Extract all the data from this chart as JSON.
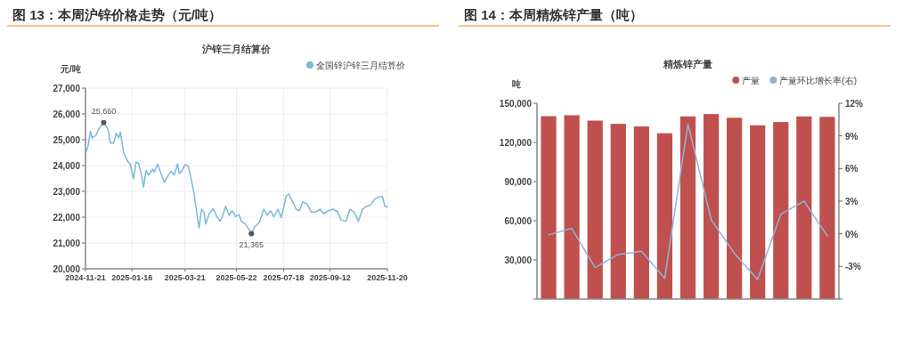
{
  "chart_data": [
    {
      "type": "line",
      "title": "图 13：本周沪锌价格走势（元/吨）",
      "subtitle": "沪锌三月结算价",
      "ylabel": "元/吨",
      "series": [
        {
          "name": "全国锌沪锌三月结算价",
          "color": "#7ab8d9",
          "x": [
            "2024-11-21",
            "2024-11-24",
            "2024-11-27",
            "2024-11-29",
            "2024-12-04",
            "2024-12-07",
            "2024-12-13",
            "2024-12-18",
            "2024-12-21",
            "2024-12-25",
            "2024-12-28",
            "2024-12-31",
            "2025-01-02",
            "2025-01-06",
            "2025-01-11",
            "2025-01-14",
            "2025-01-18",
            "2025-01-21",
            "2025-01-24",
            "2025-01-27",
            "2025-01-30",
            "2025-02-02",
            "2025-02-05",
            "2025-02-10",
            "2025-02-12",
            "2025-02-16",
            "2025-02-20",
            "2025-02-24",
            "2025-02-27",
            "2025-03-04",
            "2025-03-08",
            "2025-03-12",
            "2025-03-14",
            "2025-03-17",
            "2025-03-21",
            "2025-03-25",
            "2025-03-29",
            "2025-04-01",
            "2025-04-04",
            "2025-04-07",
            "2025-04-10",
            "2025-04-13",
            "2025-04-15",
            "2025-04-19",
            "2025-04-24",
            "2025-04-28",
            "2025-05-02",
            "2025-05-05",
            "2025-05-09",
            "2025-05-13",
            "2025-05-17",
            "2025-05-21",
            "2025-05-25",
            "2025-05-28",
            "2025-06-02",
            "2025-06-09",
            "2025-06-13",
            "2025-06-19",
            "2025-06-24",
            "2025-06-28",
            "2025-07-02",
            "2025-07-06",
            "2025-07-11",
            "2025-07-15",
            "2025-07-21",
            "2025-07-24",
            "2025-07-28",
            "2025-08-02",
            "2025-08-06",
            "2025-08-10",
            "2025-08-15",
            "2025-08-20",
            "2025-08-25",
            "2025-08-31",
            "2025-09-04",
            "2025-09-10",
            "2025-09-15",
            "2025-09-21",
            "2025-09-25",
            "2025-10-01",
            "2025-10-06",
            "2025-10-11",
            "2025-10-16",
            "2025-10-21",
            "2025-10-26",
            "2025-10-31",
            "2025-11-05",
            "2025-11-10",
            "2025-11-14",
            "2025-11-17",
            "2025-11-20"
          ],
          "values": [
            24500,
            24730,
            25330,
            25070,
            25190,
            25420,
            25660,
            25420,
            24870,
            24870,
            25250,
            25070,
            25300,
            24500,
            24150,
            24060,
            23490,
            24130,
            24090,
            23710,
            23170,
            23810,
            23630,
            23860,
            23750,
            24060,
            23690,
            23340,
            23520,
            23780,
            23630,
            24060,
            23690,
            23780,
            24040,
            23980,
            23400,
            22880,
            22190,
            21590,
            22310,
            22190,
            21730,
            22130,
            22330,
            22050,
            21840,
            22020,
            22420,
            22080,
            22250,
            22020,
            22100,
            21840,
            21730,
            21365,
            21620,
            21820,
            22310,
            22080,
            22250,
            22020,
            22310,
            21980,
            22820,
            22900,
            22650,
            22310,
            22250,
            22600,
            22510,
            22210,
            22190,
            22310,
            22130,
            22250,
            22310,
            22210,
            21900,
            21840,
            22310,
            22190,
            21840,
            22310,
            22420,
            22480,
            22710,
            22790,
            22790,
            22420,
            22400
          ]
        }
      ],
      "xlim": [
        "2024-11-21",
        "2025-11-20"
      ],
      "xticks": [
        "2024-11-21",
        "2025-01-16",
        "2025-03-21",
        "2025-05-22",
        "2025-07-18",
        "2025-09-12",
        "2025-11-20"
      ],
      "ylim": [
        20000,
        27000
      ],
      "yticks": [
        {
          "value": 20000,
          "label": "20,000"
        },
        {
          "value": 21000,
          "label": "21,000"
        },
        {
          "value": 22000,
          "label": "22,000"
        },
        {
          "value": 23000,
          "label": "23,000"
        },
        {
          "value": 24000,
          "label": "24,000"
        },
        {
          "value": 25000,
          "label": "25,000"
        },
        {
          "value": 26000,
          "label": "26,000"
        },
        {
          "value": 27000,
          "label": "27,000"
        }
      ],
      "annotations": [
        {
          "text": "25,660",
          "x": "2024-12-13",
          "y": 25660
        },
        {
          "text": "21,365",
          "x": "2025-06-09",
          "y": 21365
        }
      ],
      "grid": true,
      "legend": "top right"
    },
    {
      "type": "bar",
      "title": "图 14：本周精炼锌产量（吨）",
      "subtitle": "精炼锌产量",
      "ylabel": "吨",
      "categories": [
        null,
        null,
        null,
        null,
        null,
        null,
        null,
        null,
        null,
        null,
        null,
        null,
        null
      ],
      "series": [
        {
          "name": "产量",
          "color": "#c0504d",
          "values": [
            140100,
            140800,
            136700,
            134200,
            132200,
            127000,
            139900,
            141700,
            138900,
            133100,
            135600,
            139900,
            139600
          ]
        },
        {
          "name": "产量环比增长率(右)",
          "type": "line",
          "axis": "y2",
          "color": "#8fb4dc",
          "values": [
            -0.1,
            0.5,
            -3.1,
            -1.9,
            -1.6,
            -4.1,
            10.1,
            1.3,
            -1.8,
            -4.2,
            1.8,
            3.0,
            -0.2
          ]
        }
      ],
      "ylim": [
        0,
        150000
      ],
      "yticks": [
        {
          "value": 0,
          "label": null
        },
        {
          "value": 30000,
          "label": "30,000"
        },
        {
          "value": 60000,
          "label": "60,000"
        },
        {
          "value": 90000,
          "label": "90,000"
        },
        {
          "value": 120000,
          "label": "120,000"
        },
        {
          "value": 150000,
          "label": "150,000"
        }
      ],
      "y2lim": [
        -6,
        12
      ],
      "y2ticks": [
        {
          "value": -6,
          "label": null
        },
        {
          "value": -3,
          "label": "-3%"
        },
        {
          "value": 0,
          "label": "0%"
        },
        {
          "value": 3,
          "label": "3%"
        },
        {
          "value": 6,
          "label": "6%"
        },
        {
          "value": 9,
          "label": "9%"
        },
        {
          "value": 12,
          "label": "12%"
        }
      ],
      "tick_labels": "y",
      "legend": "top right"
    }
  ]
}
